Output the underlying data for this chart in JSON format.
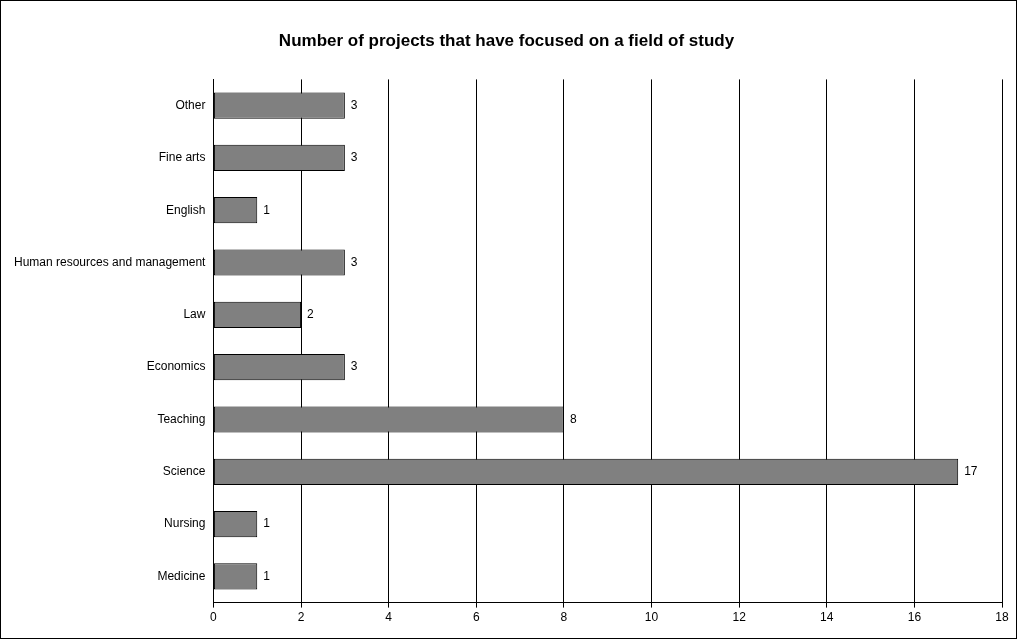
{
  "chart_data": {
    "type": "bar",
    "orientation": "horizontal",
    "title": "Number of projects that have focused on a field of study",
    "categories": [
      "Other",
      "Fine arts",
      "English",
      "Human resources and management",
      "Law",
      "Economics",
      "Teaching",
      "Science",
      "Nursing",
      "Medicine"
    ],
    "values": [
      3,
      3,
      1,
      3,
      2,
      3,
      8,
      17,
      1,
      1
    ],
    "color": "#808080",
    "xlim": [
      0,
      18
    ],
    "xticks": [
      0,
      2,
      4,
      6,
      8,
      10,
      12,
      14,
      16,
      18
    ],
    "grid": "x",
    "data_labels": true
  }
}
